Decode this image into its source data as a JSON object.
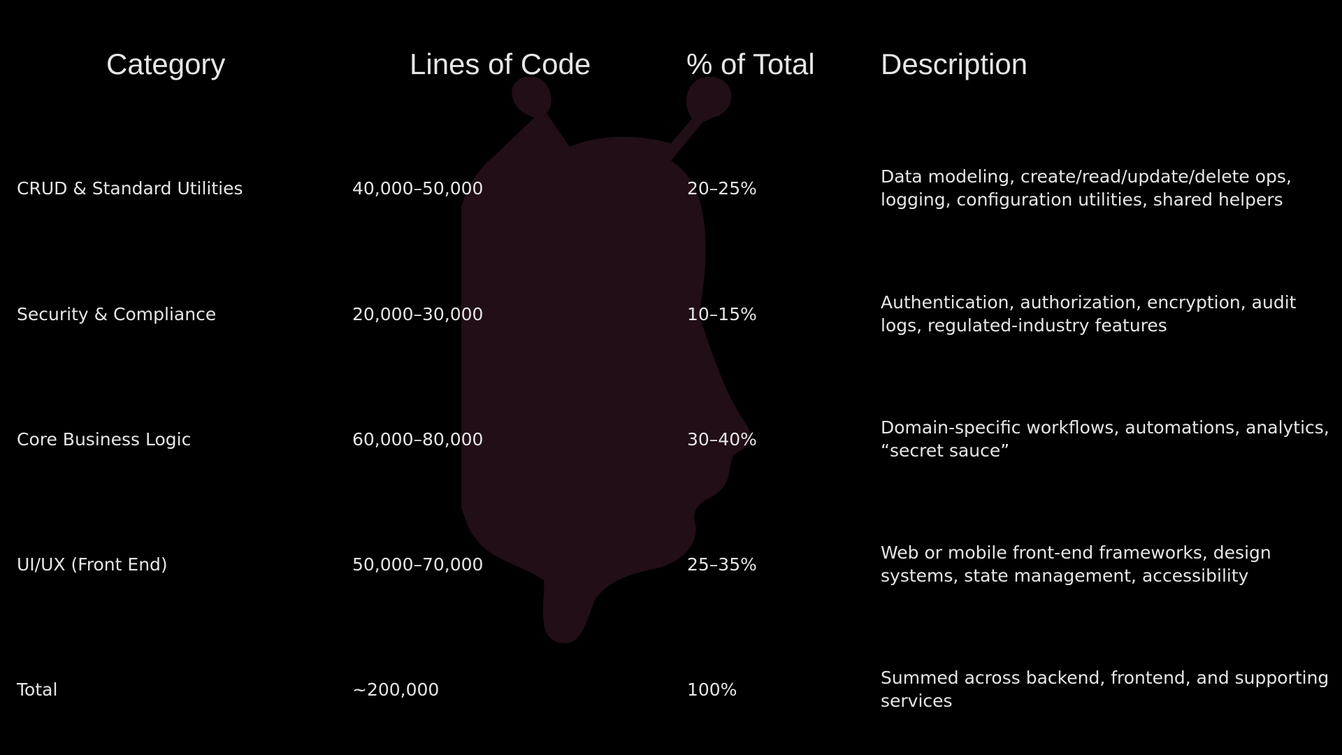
{
  "headers": {
    "category": "Category",
    "loc": "Lines of Code",
    "pct": "% of Total",
    "desc": "Description"
  },
  "rows": [
    {
      "category": "CRUD & Standard Utilities",
      "loc": "40,000–50,000",
      "pct": "20–25%",
      "desc": "Data modeling, create/read/update/delete ops, logging, configuration utilities, shared helpers"
    },
    {
      "category": "Security & Compliance",
      "loc": "20,000–30,000",
      "pct": "10–15%",
      "desc": "Authentication, authorization, encryption, audit logs, regulated-industry features"
    },
    {
      "category": "Core Business Logic",
      "loc": "60,000–80,000",
      "pct": "30–40%",
      "desc": "Domain-specific workflows, automations, analytics, “secret sauce”"
    },
    {
      "category": "UI/UX (Front End)",
      "loc": "50,000–70,000",
      "pct": "25–35%",
      "desc": "Web or mobile front-end frameworks, design systems, state management, accessibility"
    },
    {
      "category": "Total",
      "loc": "~200,000",
      "pct": "100%",
      "desc": "Summed across backend, frontend, and supporting services"
    }
  ],
  "colors": {
    "background": "#000000",
    "text": "#e6e6e6",
    "watermark": "#210e17"
  },
  "watermark_icon": "bug-icon"
}
